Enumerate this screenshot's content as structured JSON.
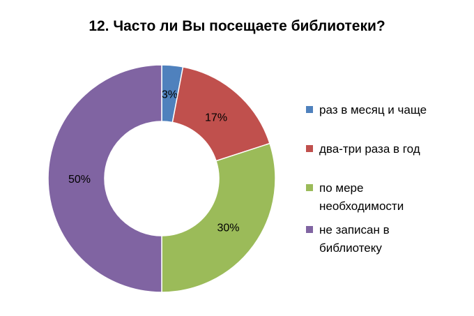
{
  "chart_data": {
    "type": "pie",
    "subtype": "donut",
    "title": "12. Часто ли Вы посещаете библиотеки?",
    "categories": [
      "раз в месяц и чаще",
      "два-три раза в год",
      "по мере необходимости",
      "не записан в библиотеку"
    ],
    "values": [
      3,
      17,
      30,
      50
    ],
    "value_labels": [
      "3%",
      "17%",
      "30%",
      "50%"
    ],
    "colors": [
      "#4F81BD",
      "#C0504D",
      "#9BBB59",
      "#8064A2"
    ],
    "legend_position": "right"
  }
}
